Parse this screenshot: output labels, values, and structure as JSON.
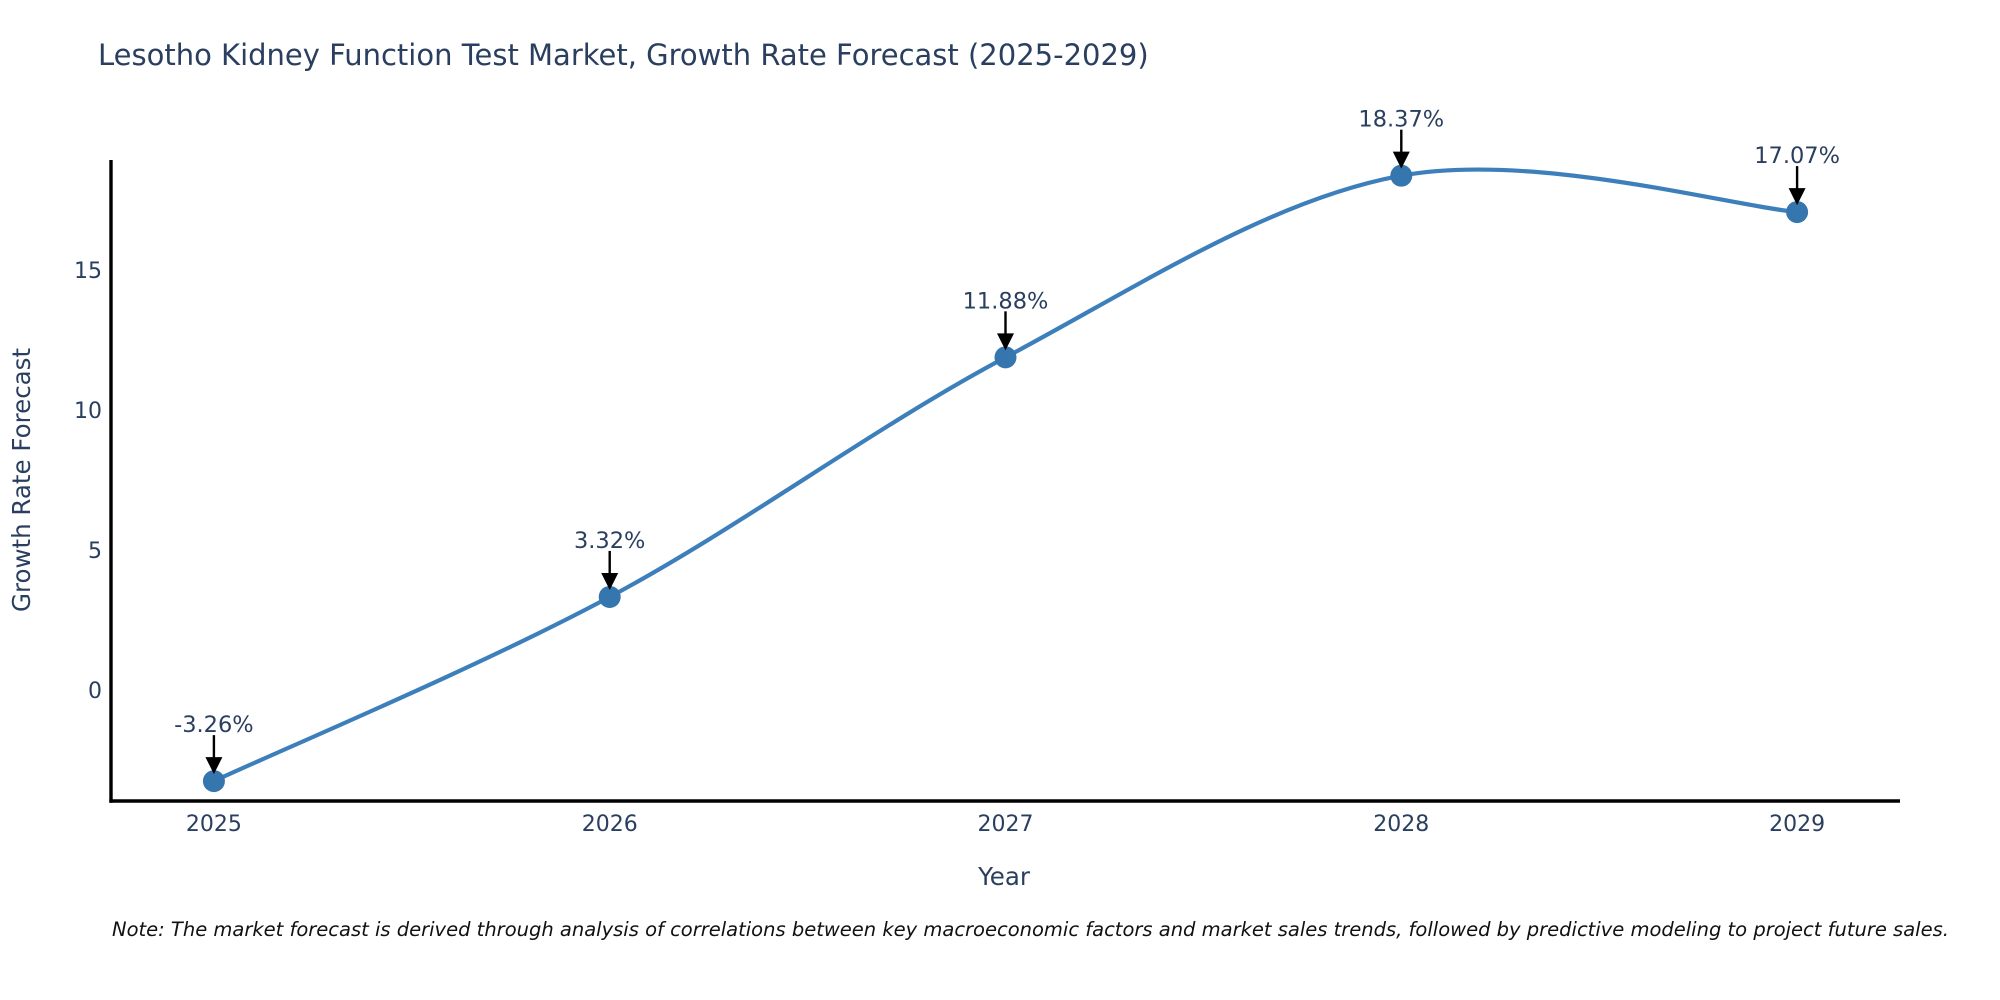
{
  "chart_data": {
    "type": "line",
    "title": "Lesotho Kidney Function Test Market, Growth Rate Forecast (2025-2029)",
    "xlabel": "Year",
    "ylabel": "Growth Rate Forecast",
    "x": [
      2025,
      2026,
      2027,
      2028,
      2029
    ],
    "y": [
      -3.26,
      3.32,
      11.88,
      18.37,
      17.07
    ],
    "point_labels": [
      "-3.26%",
      "3.32%",
      "11.88%",
      "18.37%",
      "17.07%"
    ],
    "xticks": [
      "2025",
      "2026",
      "2027",
      "2028",
      "2029"
    ],
    "xtick_values": [
      2025,
      2026,
      2027,
      2028,
      2029
    ],
    "yticks": [
      "0",
      "5",
      "10",
      "15"
    ],
    "ytick_values": [
      0,
      5,
      10,
      15
    ],
    "xlim": [
      2024.74,
      2029.26
    ],
    "ylim": [
      -3.97,
      18.93
    ],
    "grid": false,
    "legend": false,
    "line_shape": "spline",
    "annotations_have_arrows": true,
    "note": "Note: The market forecast is derived through analysis of correlations between key macroeconomic factors and market sales trends, followed by predictive modeling to project future sales.",
    "colors": {
      "line": "#3d7fbb",
      "marker": "#3676ae",
      "axis": "#000000",
      "arrow": "#000000",
      "font": "#2a3f5f",
      "note_text": "#111111",
      "background": "#ffffff"
    }
  }
}
